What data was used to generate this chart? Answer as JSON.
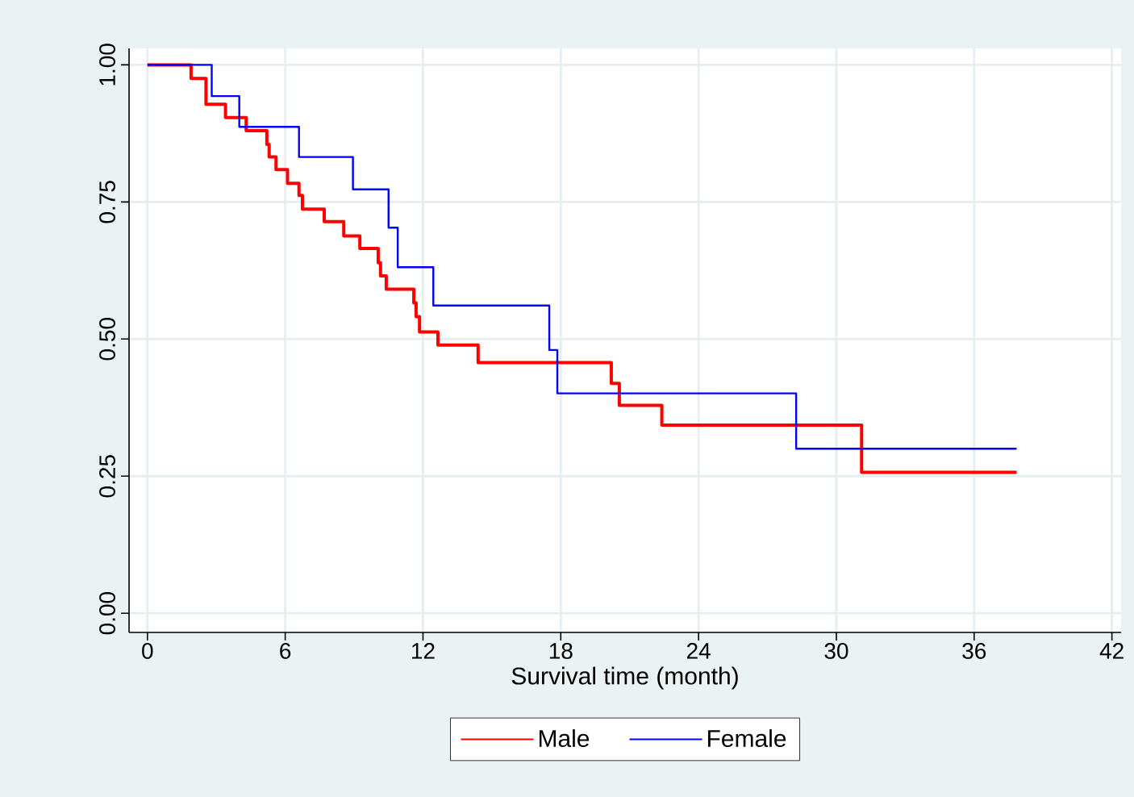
{
  "chart_data": {
    "type": "step",
    "xlabel": "Survival time (month)",
    "xlim": [
      -0.8,
      42.4
    ],
    "xticks": [
      0,
      6,
      12,
      18,
      24,
      30,
      36,
      42
    ],
    "ylim": [
      -0.035,
      1.03
    ],
    "yticks": [
      {
        "value": 0,
        "label": "0.00"
      },
      {
        "value": 0.25,
        "label": "0.25"
      },
      {
        "value": 0.5,
        "label": "0.50"
      },
      {
        "value": 0.75,
        "label": "0.75"
      },
      {
        "value": 1,
        "label": "1.00"
      }
    ],
    "grid": true,
    "legend": "bottom",
    "series": [
      {
        "name": "Male",
        "color": "#ff0000",
        "x": [
          0,
          1.9,
          2.55,
          3.4,
          4.3,
          5.2,
          5.3,
          5.6,
          6.1,
          6.6,
          6.75,
          7.7,
          8.55,
          9.25,
          10.05,
          10.15,
          10.4,
          11.6,
          11.7,
          11.85,
          12.65,
          14.4,
          20.2,
          20.55,
          22.4,
          31.1,
          37.85
        ],
        "values": [
          1.0,
          0.975,
          0.928,
          0.904,
          0.88,
          0.855,
          0.832,
          0.809,
          0.784,
          0.762,
          0.737,
          0.714,
          0.688,
          0.665,
          0.639,
          0.615,
          0.591,
          0.566,
          0.541,
          0.513,
          0.489,
          0.457,
          0.419,
          0.379,
          0.343,
          0.257,
          0.257
        ]
      },
      {
        "name": "Female",
        "color": "#0000ff",
        "x": [
          0,
          2.8,
          4.0,
          6.6,
          8.95,
          10.5,
          10.9,
          12.45,
          17.5,
          17.85,
          28.25,
          37.85
        ],
        "values": [
          1.0,
          0.943,
          0.887,
          0.832,
          0.773,
          0.703,
          0.631,
          0.561,
          0.48,
          0.401,
          0.3,
          0.3
        ]
      }
    ]
  }
}
